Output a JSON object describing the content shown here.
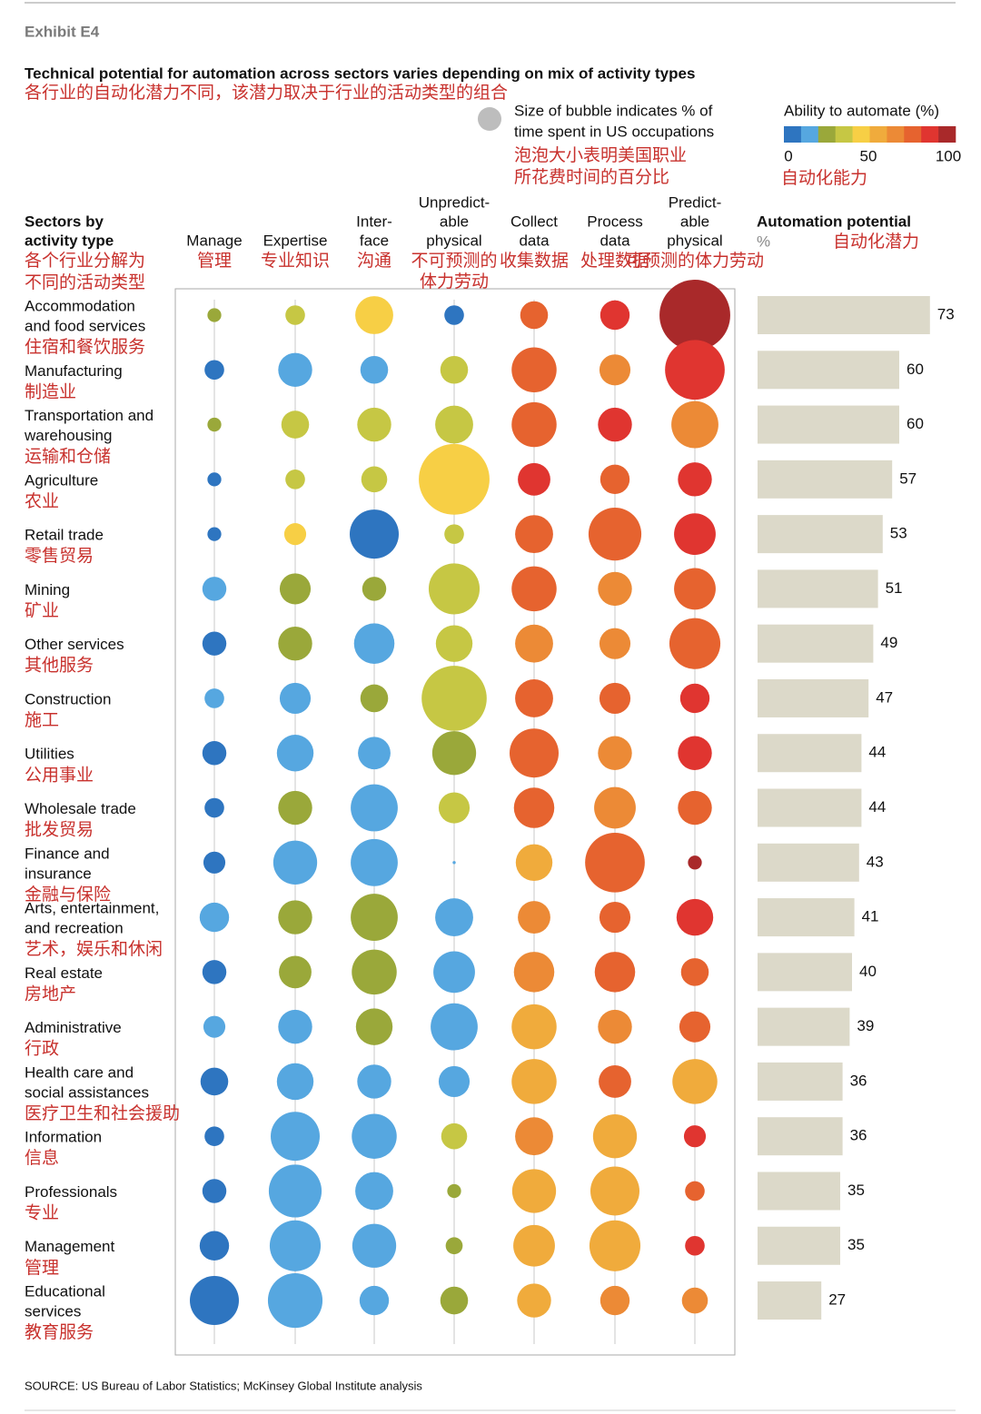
{
  "header": {
    "exhibit": "Exhibit E4",
    "title": "Technical potential for automation across sectors varies depending on mix of activity types",
    "subtitle_cn": "各行业的自动化潜力不同，该潜力取决于行业的活动类型的组合"
  },
  "chart_data": [
    {
      "type": "bubble-matrix",
      "row_header": [
        "Sectors by",
        "activity type"
      ],
      "row_header_cn": [
        "各个行业分解为",
        "不同的活动类型"
      ],
      "columns": [
        {
          "label": [
            "Manage"
          ],
          "label_cn": [
            "管理"
          ]
        },
        {
          "label": [
            "Expertise"
          ],
          "label_cn": [
            "专业知识"
          ]
        },
        {
          "label": [
            "Inter-",
            "face"
          ],
          "label_cn": [
            "沟通"
          ]
        },
        {
          "label": [
            "Unpredict-",
            "able",
            "physical"
          ],
          "label_cn": [
            "不可预测的",
            "体力劳动"
          ]
        },
        {
          "label": [
            "Collect",
            "data"
          ],
          "label_cn": [
            "收集数据"
          ]
        },
        {
          "label": [
            "Process",
            "data"
          ],
          "label_cn": [
            "处理数据"
          ]
        },
        {
          "label": [
            "Predict-",
            "able",
            "physical"
          ],
          "label_cn": [
            "可预测的体力劳动"
          ]
        }
      ],
      "rows": [
        {
          "label": [
            "Accommodation",
            "and food services"
          ],
          "label_cn": "住宿和餐饮服务"
        },
        {
          "label": [
            "Manufacturing"
          ],
          "label_cn": "制造业"
        },
        {
          "label": [
            "Transportation and",
            "warehousing"
          ],
          "label_cn": "运输和仓储"
        },
        {
          "label": [
            "Agriculture"
          ],
          "label_cn": "农业"
        },
        {
          "label": [
            "Retail trade"
          ],
          "label_cn": "零售贸易"
        },
        {
          "label": [
            "Mining"
          ],
          "label_cn": "矿业"
        },
        {
          "label": [
            "Other services"
          ],
          "label_cn": "其他服务"
        },
        {
          "label": [
            "Construction"
          ],
          "label_cn": "施工"
        },
        {
          "label": [
            "Utilities"
          ],
          "label_cn": "公用事业"
        },
        {
          "label": [
            "Wholesale trade"
          ],
          "label_cn": "批发贸易"
        },
        {
          "label": [
            "Finance and",
            "insurance"
          ],
          "label_cn": "金融与保险"
        },
        {
          "label": [
            "Arts, entertainment,",
            "and recreation"
          ],
          "label_cn": "艺术，娱乐和休闲"
        },
        {
          "label": [
            "Real estate"
          ],
          "label_cn": "房地产"
        },
        {
          "label": [
            "Administrative"
          ],
          "label_cn": "行政"
        },
        {
          "label": [
            "Health care and",
            "social assistances"
          ],
          "label_cn": "医疗卫生和社会援助"
        },
        {
          "label": [
            "Information"
          ],
          "label_cn": "信息"
        },
        {
          "label": [
            "Professionals"
          ],
          "label_cn": "专业"
        },
        {
          "label": [
            "Management"
          ],
          "label_cn": "管理"
        },
        {
          "label": [
            "Educational",
            "services"
          ],
          "label_cn": "教育服务"
        }
      ],
      "time_share": [
        [
          2,
          4,
          15,
          4,
          8,
          9,
          52
        ],
        [
          4,
          12,
          8,
          8,
          21,
          10,
          37
        ],
        [
          2,
          8,
          12,
          15,
          21,
          12,
          23
        ],
        [
          2,
          4,
          7,
          52,
          11,
          9,
          12
        ],
        [
          2,
          5,
          25,
          4,
          15,
          29,
          18
        ],
        [
          6,
          10,
          6,
          27,
          21,
          12,
          18
        ],
        [
          6,
          12,
          17,
          14,
          15,
          10,
          27
        ],
        [
          4,
          10,
          8,
          44,
          15,
          10,
          9
        ],
        [
          6,
          14,
          11,
          20,
          25,
          12,
          12
        ],
        [
          4,
          12,
          23,
          10,
          17,
          18,
          12
        ],
        [
          5,
          20,
          23,
          0.1,
          14,
          37,
          2
        ],
        [
          9,
          12,
          23,
          15,
          11,
          10,
          14
        ],
        [
          6,
          11,
          21,
          18,
          17,
          17,
          8
        ],
        [
          5,
          12,
          14,
          23,
          21,
          12,
          10
        ],
        [
          8,
          14,
          12,
          10,
          21,
          11,
          21
        ],
        [
          4,
          25,
          21,
          7,
          15,
          20,
          5
        ],
        [
          6,
          29,
          15,
          2,
          20,
          25,
          4
        ],
        [
          9,
          27,
          20,
          3,
          18,
          27,
          4
        ],
        [
          25,
          31,
          9,
          8,
          12,
          9,
          7
        ]
      ],
      "automate": [
        [
          25,
          35,
          45,
          5,
          75,
          85,
          95
        ],
        [
          5,
          15,
          15,
          35,
          75,
          65,
          85
        ],
        [
          25,
          35,
          35,
          35,
          75,
          85,
          65
        ],
        [
          5,
          35,
          35,
          45,
          85,
          75,
          85
        ],
        [
          5,
          45,
          5,
          35,
          75,
          75,
          85
        ],
        [
          15,
          25,
          25,
          35,
          75,
          65,
          75
        ],
        [
          5,
          25,
          15,
          35,
          65,
          65,
          75
        ],
        [
          15,
          15,
          25,
          35,
          75,
          75,
          85
        ],
        [
          5,
          15,
          15,
          25,
          75,
          65,
          85
        ],
        [
          5,
          25,
          15,
          35,
          75,
          65,
          75
        ],
        [
          5,
          15,
          15,
          15,
          55,
          75,
          95
        ],
        [
          15,
          25,
          25,
          15,
          65,
          75,
          85
        ],
        [
          5,
          25,
          25,
          15,
          65,
          75,
          75
        ],
        [
          15,
          15,
          25,
          15,
          55,
          65,
          75
        ],
        [
          5,
          15,
          15,
          15,
          55,
          75,
          55
        ],
        [
          5,
          15,
          15,
          35,
          65,
          55,
          85
        ],
        [
          5,
          15,
          15,
          25,
          55,
          55,
          75
        ],
        [
          5,
          15,
          15,
          25,
          55,
          55,
          85
        ],
        [
          5,
          15,
          15,
          25,
          55,
          65,
          65
        ]
      ],
      "size_legend": {
        "label": [
          "Size of bubble indicates % of",
          "time spent in US occupations"
        ],
        "label_cn": [
          "泡泡大小表明美国职业",
          "所花费时间的百分比"
        ]
      },
      "color_scale": {
        "title": "Ability to automate (%)",
        "title_cn": "自动化能力",
        "lim": [
          0,
          100
        ],
        "ticks": [
          0,
          50,
          100
        ],
        "colors": [
          "#2e75c0",
          "#56a7e0",
          "#9aa83a",
          "#c6c744",
          "#f7cf45",
          "#f0ab3c",
          "#ec8a36",
          "#e6632f",
          "#e03530",
          "#a9292a"
        ]
      }
    },
    {
      "type": "bar",
      "title": "Automation potential",
      "unit": "%",
      "title_cn": "自动化潜力",
      "color": "#dcd9c9",
      "values": [
        73,
        60,
        60,
        57,
        53,
        51,
        49,
        47,
        44,
        44,
        43,
        41,
        40,
        39,
        36,
        36,
        35,
        35,
        27
      ]
    }
  ],
  "source": "SOURCE:  US Bureau of Labor Statistics; McKinsey Global Institute analysis"
}
